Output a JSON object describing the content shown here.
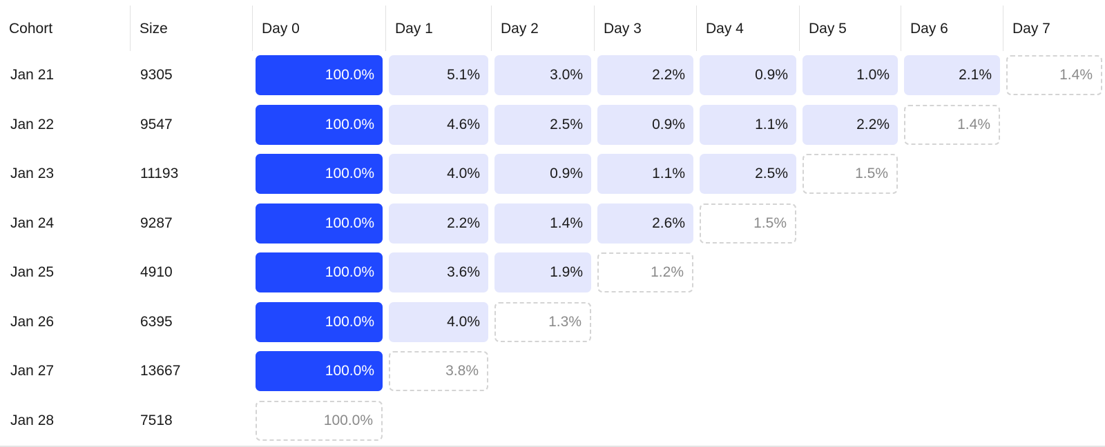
{
  "chart_data": {
    "type": "heatmap",
    "columns": [
      "Cohort",
      "Size",
      "Day 0",
      "Day 1",
      "Day 2",
      "Day 3",
      "Day 4",
      "Day 5",
      "Day 6",
      "Day 7"
    ],
    "rows": [
      {
        "cohort": "Jan 21",
        "size": "9305",
        "values": [
          "100.0%",
          "5.1%",
          "3.0%",
          "2.2%",
          "0.9%",
          "1.0%",
          "2.1%",
          "1.4%"
        ]
      },
      {
        "cohort": "Jan 22",
        "size": "9547",
        "values": [
          "100.0%",
          "4.6%",
          "2.5%",
          "0.9%",
          "1.1%",
          "2.2%",
          "1.4%"
        ]
      },
      {
        "cohort": "Jan 23",
        "size": "11193",
        "values": [
          "100.0%",
          "4.0%",
          "0.9%",
          "1.1%",
          "2.5%",
          "1.5%"
        ]
      },
      {
        "cohort": "Jan 24",
        "size": "9287",
        "values": [
          "100.0%",
          "2.2%",
          "1.4%",
          "2.6%",
          "1.5%"
        ]
      },
      {
        "cohort": "Jan 25",
        "size": "4910",
        "values": [
          "100.0%",
          "3.6%",
          "1.9%",
          "1.2%"
        ]
      },
      {
        "cohort": "Jan 26",
        "size": "6395",
        "values": [
          "100.0%",
          "4.0%",
          "1.3%"
        ]
      },
      {
        "cohort": "Jan 27",
        "size": "13667",
        "values": [
          "100.0%",
          "3.8%"
        ]
      },
      {
        "cohort": "Jan 28",
        "size": "7518",
        "values": [
          "100.0%"
        ]
      }
    ],
    "last_cell_in_row_is_incomplete": true,
    "colors": {
      "full": "#2048ff",
      "partial": "#e4e7fd",
      "incomplete_border": "#d4d4d4",
      "incomplete_text": "#8a8a8a"
    }
  }
}
